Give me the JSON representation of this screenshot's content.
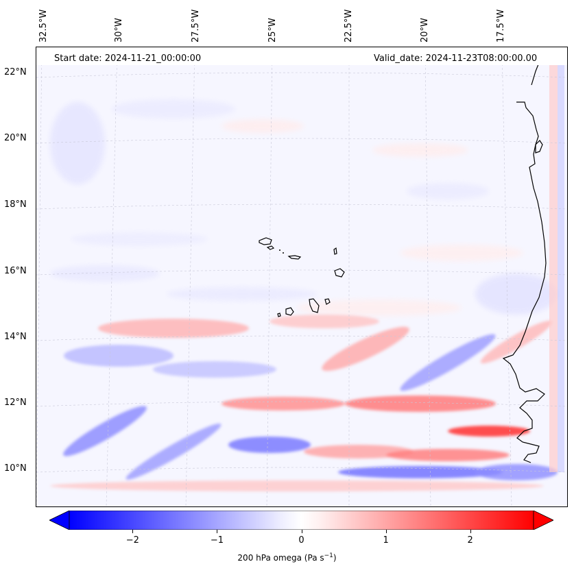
{
  "map": {
    "title_left": "Start date: 2024-11-21_00:00:00",
    "title_right": "Valid_date: 2024-11-23T08:00:00.00",
    "lon_labels": [
      "32.5°W",
      "30°W",
      "27.5°W",
      "25°W",
      "22.5°W",
      "20°W",
      "17.5°W"
    ],
    "lat_labels": [
      "22°N",
      "20°N",
      "18°N",
      "16°N",
      "14°N",
      "12°N",
      "10°N"
    ],
    "islands": [
      "Santo Antão",
      "São Vicente",
      "São Nicolau",
      "Sal",
      "Boa Vista",
      "Maio",
      "Santiago",
      "Fogo",
      "Brava"
    ],
    "field": "200 hPa omega",
    "colors": {
      "negative": "#0000ff",
      "neutral": "#ffffff",
      "positive": "#ff0000",
      "coast": "#000000",
      "grid": "#c8c8d8"
    }
  },
  "colorbar": {
    "min": -2.75,
    "max": 2.75,
    "ticks": [
      "−2",
      "−1",
      "0",
      "1",
      "2"
    ],
    "tick_values": [
      -2,
      -1,
      0,
      1,
      2
    ],
    "label_main": "200 hPa omega (Pa s",
    "label_sup": "−1",
    "label_end": ")"
  }
}
